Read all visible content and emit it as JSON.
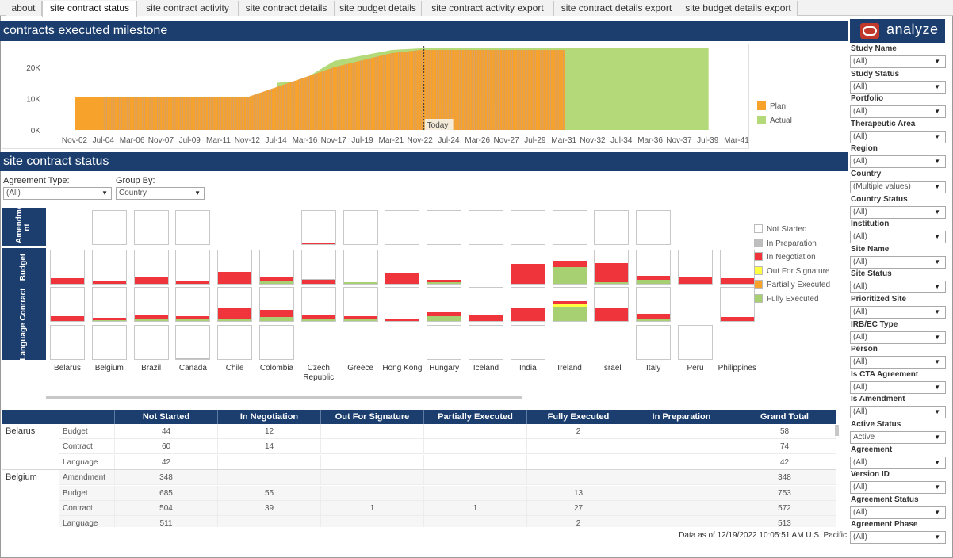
{
  "tabs": [
    "about",
    "site contract status",
    "site contract activity",
    "site contract details",
    "site budget details",
    "site contract activity export",
    "site contract details export",
    "site budget details export"
  ],
  "active_tab": "site contract status",
  "milestone": {
    "title": "contracts executed milestone",
    "today_label": "Today"
  },
  "status": {
    "title": "site contract status",
    "agreement_type_label": "Agreement Type:",
    "agreement_type_value": "(All)",
    "group_by_label": "Group By:",
    "group_by_value": "Country"
  },
  "chart_data": [
    {
      "type": "area",
      "title": "contracts executed milestone",
      "x_ticks": [
        "Nov-02",
        "Jul-04",
        "Mar-06",
        "Nov-07",
        "Jul-09",
        "Mar-11",
        "Nov-12",
        "Jul-14",
        "Mar-16",
        "Nov-17",
        "Jul-19",
        "Mar-21",
        "Nov-22",
        "Jul-24",
        "Mar-26",
        "Nov-27",
        "Jul-29",
        "Mar-31",
        "Nov-32",
        "Jul-34",
        "Mar-36",
        "Nov-37",
        "Jul-39",
        "Mar-41"
      ],
      "y_ticks": [
        "0K",
        "10K",
        "20K"
      ],
      "ylim": [
        0,
        26000
      ],
      "legend": [
        "Plan",
        "Actual"
      ],
      "legend_placement": "right",
      "today_marker": "Nov-22",
      "series": [
        {
          "name": "Plan",
          "x": [
            "Nov-02",
            "Jul-04",
            "Nov-12",
            "Nov-17",
            "Mar-21",
            "Nov-22",
            "Jul-29",
            "Mar-31"
          ],
          "y": [
            10500,
            10500,
            10500,
            20000,
            24500,
            25500,
            25500,
            25500
          ]
        },
        {
          "name": "Actual",
          "x": [
            "Jul-14",
            "Jul-16",
            "Mar-16",
            "Nov-17",
            "Mar-21",
            "Nov-22",
            "Jul-29",
            "Mar-31",
            "Jul-39"
          ],
          "y": [
            15000,
            15500,
            16500,
            22000,
            25500,
            26000,
            26000,
            26000,
            26000
          ]
        }
      ],
      "colors": {
        "Plan": "#f7a22a",
        "Actual": "#b3d978"
      }
    },
    {
      "type": "heatmap",
      "rows": [
        "Amendment",
        "Budget",
        "Contract",
        "Language"
      ],
      "columns": [
        "Belarus",
        "Belgium",
        "Brazil",
        "Canada",
        "Chile",
        "Colombia",
        "Czech Republic",
        "Greece",
        "Hong Kong",
        "Hungary",
        "Iceland",
        "India",
        "Ireland",
        "Israel",
        "Italy",
        "Peru",
        "Philippines"
      ],
      "legend": [
        "Not Started",
        "In Preparation",
        "In Negotiation",
        "Out For Signature",
        "Partially Executed",
        "Fully Executed"
      ],
      "legend_colors": [
        "#ffffff",
        "#bfbfbf",
        "#f0343c",
        "#ffff44",
        "#f7a22a",
        "#a6d072"
      ],
      "cells": {
        "Amendment": [
          null,
          {
            "ns": 100
          },
          {
            "ns": 100
          },
          {
            "ns": 100
          },
          null,
          null,
          {
            "neg": 4,
            "prep": 2
          },
          {
            "ns": 100
          },
          {
            "ns": 100
          },
          {
            "ns": 100
          },
          {
            "ns": 100
          },
          {
            "ns": 100
          },
          {
            "ns": 100
          },
          {
            "ns": 100
          },
          {
            "ns": 100
          },
          null,
          null
        ],
        "Budget": [
          {
            "neg": 17
          },
          {
            "neg": 6
          },
          {
            "neg": 22
          },
          {
            "neg": 10
          },
          {
            "neg": 35
          },
          {
            "neg": 12,
            "full": 10
          },
          {
            "neg": 12,
            "prep": 3
          },
          {
            "full": 4
          },
          {
            "neg": 32
          },
          {
            "neg": 6,
            "full": 5
          },
          null,
          {
            "neg": 60
          },
          {
            "neg": 18,
            "full": 50
          },
          {
            "neg": 58,
            "full": 4
          },
          {
            "neg": 12,
            "full": 12
          },
          {
            "neg": 18
          },
          {
            "neg": 16
          }
        ],
        "Contract": [
          {
            "neg": 15
          },
          {
            "neg": 6,
            "full": 3
          },
          {
            "neg": 14,
            "full": 5
          },
          {
            "neg": 10,
            "full": 5
          },
          {
            "neg": 30,
            "full": 8
          },
          {
            "neg": 22,
            "full": 12
          },
          {
            "neg": 12,
            "full": 5
          },
          {
            "neg": 10,
            "full": 4
          },
          {
            "neg": 6
          },
          {
            "neg": 12,
            "full": 14
          },
          {
            "neg": 17
          },
          {
            "neg": 40
          },
          {
            "neg": 10,
            "sig": 6,
            "full": 44
          },
          {
            "neg": 40
          },
          {
            "neg": 14,
            "full": 8
          },
          null,
          {
            "neg": 12
          }
        ],
        "Language": [
          {
            "ns": 100
          },
          {
            "ns": 100
          },
          {
            "ns": 100
          },
          {
            "ns": 100,
            "prep": 3
          },
          {
            "ns": 100
          },
          {
            "ns": 100
          },
          null,
          null,
          null,
          {
            "ns": 100
          },
          {
            "ns": 100
          },
          {
            "ns": 100
          },
          null,
          null,
          {
            "ns": 100
          },
          {
            "ns": 100
          },
          null
        ]
      }
    },
    {
      "type": "table",
      "columns": [
        "",
        "",
        "Not Started",
        "In Negotiation",
        "Out For Signature",
        "Partially Executed",
        "Fully Executed",
        "In Preparation",
        "Grand Total"
      ],
      "rows": [
        {
          "country": "Belarus",
          "type": "Budget",
          "values": [
            "44",
            "12",
            "",
            "",
            "2",
            "",
            "58"
          ]
        },
        {
          "country": "",
          "type": "Contract",
          "values": [
            "60",
            "14",
            "",
            "",
            "",
            "",
            "74"
          ]
        },
        {
          "country": "",
          "type": "Language",
          "values": [
            "42",
            "",
            "",
            "",
            "",
            "",
            "42"
          ]
        },
        {
          "country": "Belgium",
          "type": "Amendment",
          "values": [
            "348",
            "",
            "",
            "",
            "",
            "",
            "348"
          ]
        },
        {
          "country": "",
          "type": "Budget",
          "values": [
            "685",
            "55",
            "",
            "",
            "13",
            "",
            "753"
          ]
        },
        {
          "country": "",
          "type": "Contract",
          "values": [
            "504",
            "39",
            "1",
            "1",
            "27",
            "",
            "572"
          ]
        },
        {
          "country": "",
          "type": "Language",
          "values": [
            "511",
            "",
            "",
            "",
            "2",
            "",
            "513"
          ]
        }
      ]
    }
  ],
  "footer": "Data as of 12/19/2022 10:05:51 AM U.S. Pacific",
  "brand": {
    "name": "analyze",
    "color": "#1b3e6f",
    "logo_color": "#c0392b"
  },
  "filters": [
    {
      "label": "Study Name",
      "value": "(All)"
    },
    {
      "label": "Study Status",
      "value": "(All)"
    },
    {
      "label": "Portfolio",
      "value": "(All)"
    },
    {
      "label": "Therapeutic Area",
      "value": "(All)"
    },
    {
      "label": "Region",
      "value": "(All)"
    },
    {
      "label": "Country",
      "value": "(Multiple values)"
    },
    {
      "label": "Country Status",
      "value": "(All)"
    },
    {
      "label": "Institution",
      "value": "(All)"
    },
    {
      "label": "Site Name",
      "value": "(All)"
    },
    {
      "label": "Site Status",
      "value": "(All)"
    },
    {
      "label": "Prioritized Site",
      "value": "(All)"
    },
    {
      "label": "IRB/EC Type",
      "value": "(All)"
    },
    {
      "label": "Person",
      "value": "(All)"
    },
    {
      "label": "Is CTA Agreement",
      "value": "(All)"
    },
    {
      "label": "Is Amendment",
      "value": "(All)"
    },
    {
      "label": "Active Status",
      "value": "Active"
    },
    {
      "label": "Agreement",
      "value": "(All)"
    },
    {
      "label": "Version ID",
      "value": "(All)"
    },
    {
      "label": "Agreement Status",
      "value": "(All)"
    },
    {
      "label": "Agreement Phase",
      "value": "(All)"
    }
  ]
}
